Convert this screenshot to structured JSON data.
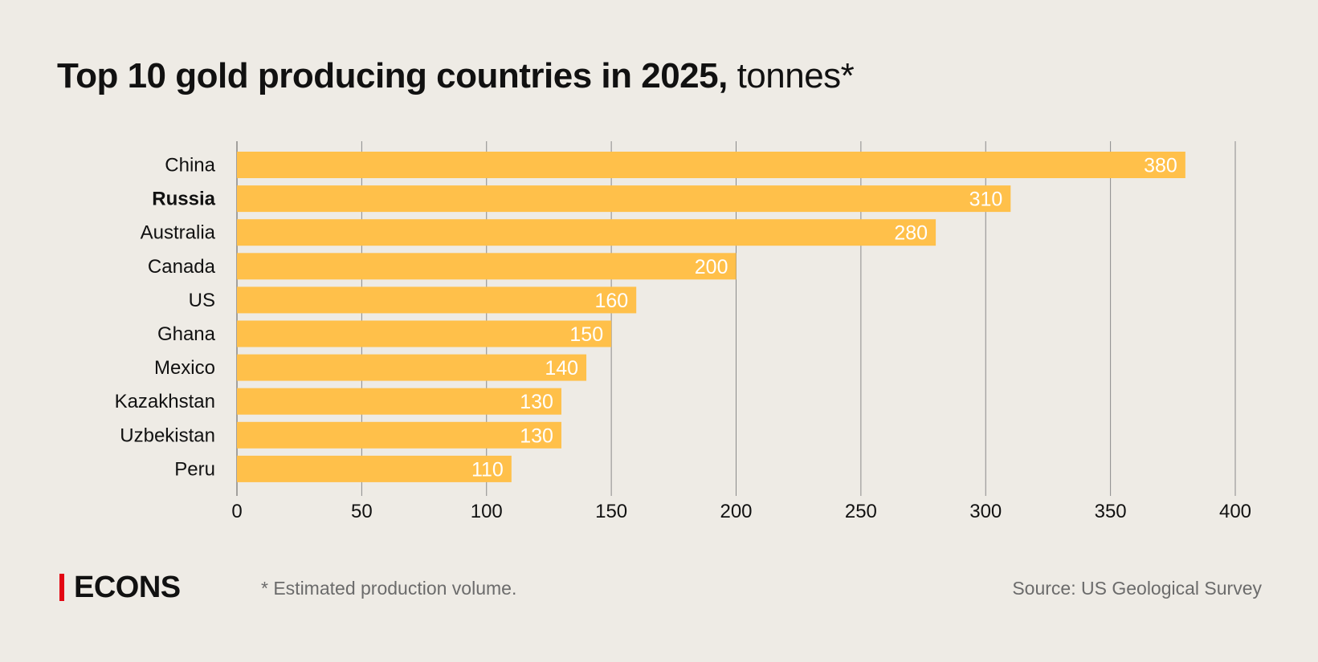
{
  "title": {
    "bold": "Top 10 gold producing countries in 2025,",
    "light": " tonnes*"
  },
  "chart_data": {
    "type": "bar",
    "orientation": "horizontal",
    "title": "Top 10 gold producing countries in 2025, tonnes*",
    "categories": [
      "China",
      "Russia",
      "Australia",
      "Canada",
      "US",
      "Ghana",
      "Mexico",
      "Kazakhstan",
      "Uzbekistan",
      "Peru"
    ],
    "values": [
      380,
      310,
      280,
      200,
      160,
      150,
      140,
      130,
      130,
      110
    ],
    "highlighted_category": "Russia",
    "xlim": [
      0,
      400
    ],
    "xticks": [
      0,
      50,
      100,
      150,
      200,
      250,
      300,
      350,
      400
    ],
    "grid": true,
    "data_labels": true,
    "colors": {
      "bar": "#FFC04A",
      "label": "#FFFFFF",
      "grid": "#8a8a8a",
      "background": "#EEEBE5"
    }
  },
  "footer": {
    "logo": "ECONS",
    "logo_accent": "#E30613",
    "note": "* Estimated production volume.",
    "source": "Source: US Geological Survey"
  }
}
